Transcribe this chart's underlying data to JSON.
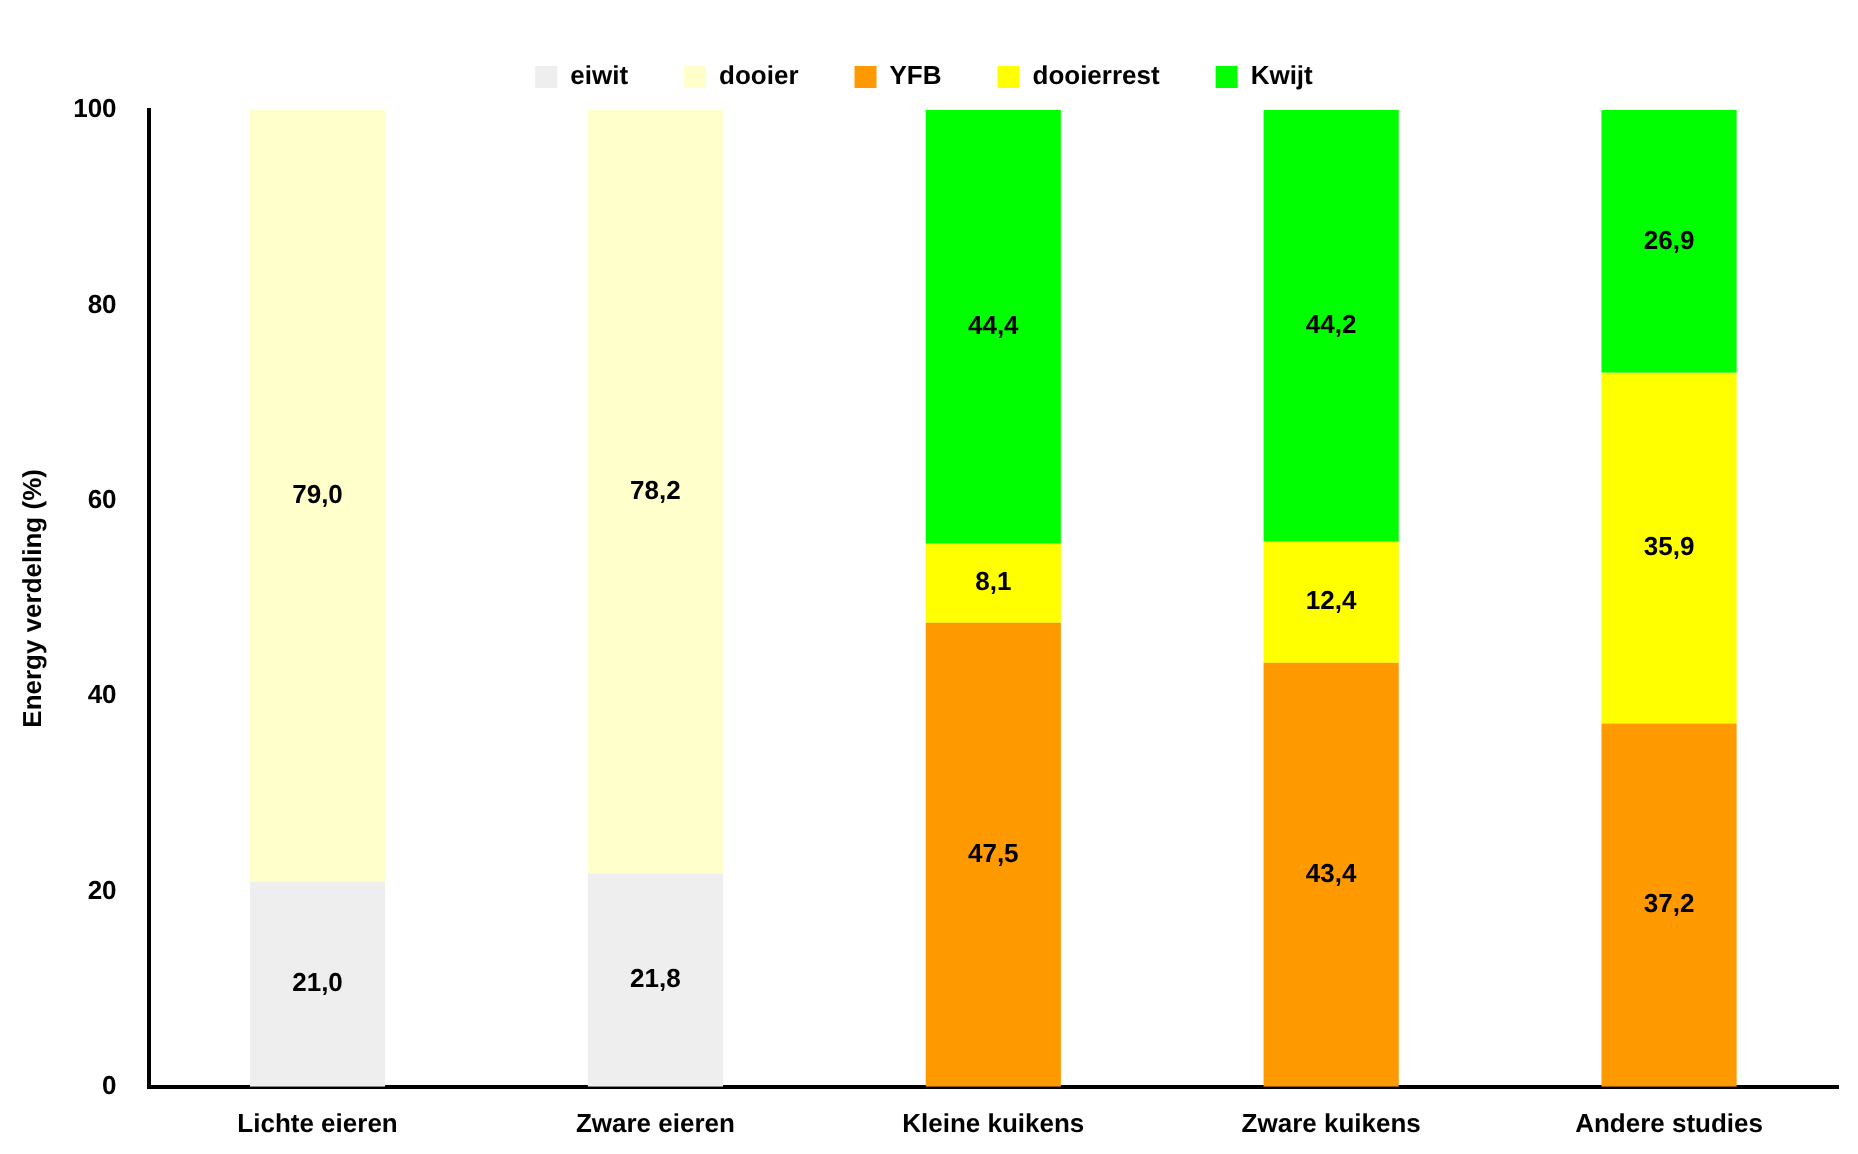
{
  "chart_data": {
    "type": "bar",
    "stacked": true,
    "ylabel": "Energy verdeling (%)",
    "categories": [
      "Lichte eieren",
      "Zware eieren",
      "Kleine kuikens",
      "Zware kuikens",
      "Andere studies"
    ],
    "series": [
      {
        "name": "eiwit",
        "color": "#eeeeee",
        "values": [
          21.0,
          21.8,
          null,
          null,
          null
        ],
        "value_labels": [
          "21,0",
          "21,8",
          null,
          null,
          null
        ]
      },
      {
        "name": "dooier",
        "color": "#ffffcc",
        "values": [
          79.0,
          78.2,
          null,
          null,
          null
        ],
        "value_labels": [
          "79,0",
          "78,2",
          null,
          null,
          null
        ]
      },
      {
        "name": "YFB",
        "color": "#ff9900",
        "values": [
          null,
          null,
          47.5,
          43.4,
          37.2
        ],
        "value_labels": [
          null,
          null,
          "47,5",
          "43,4",
          "37,2"
        ]
      },
      {
        "name": "dooierrest",
        "color": "#ffff00",
        "values": [
          null,
          null,
          8.1,
          12.4,
          35.9
        ],
        "value_labels": [
          null,
          null,
          "8,1",
          "12,4",
          "35,9"
        ]
      },
      {
        "name": "Kwijt",
        "color": "#00ff00",
        "values": [
          null,
          null,
          44.4,
          44.2,
          26.9
        ],
        "value_labels": [
          null,
          null,
          "44,4",
          "44,2",
          "26,9"
        ]
      }
    ],
    "ylim": [
      0,
      100
    ],
    "yticks": [
      0,
      20,
      40,
      60,
      80,
      100
    ],
    "grid": false,
    "legend": "top"
  }
}
